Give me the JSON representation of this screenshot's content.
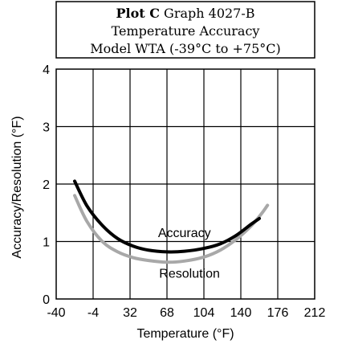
{
  "title": {
    "bold": "Plot C",
    "rest": " Graph 4027-B",
    "line2": "Temperature Accuracy",
    "line3": "Model WTA (-39°C to +75°C)"
  },
  "chart_data": {
    "type": "line",
    "xlabel": "Temperature (°F)",
    "ylabel": "Accuracy/Resolution (°F)",
    "xlim": [
      -40,
      212
    ],
    "ylim": [
      0,
      4
    ],
    "x_ticks": [
      -40,
      -4,
      32,
      68,
      104,
      140,
      176,
      212
    ],
    "y_ticks": [
      0,
      1,
      2,
      3,
      4
    ],
    "grid": true,
    "series": [
      {
        "name": "Accuracy",
        "color": "#000000",
        "x": [
          -22,
          -10,
          5,
          20,
          35,
          50,
          68,
          85,
          104,
          120,
          135,
          150,
          158
        ],
        "y": [
          2.05,
          1.62,
          1.28,
          1.05,
          0.92,
          0.85,
          0.82,
          0.83,
          0.88,
          0.96,
          1.1,
          1.3,
          1.4
        ]
      },
      {
        "name": "Resolution",
        "color": "#a8a8a8",
        "x": [
          -22,
          -10,
          5,
          20,
          35,
          50,
          68,
          85,
          104,
          120,
          135,
          150,
          160,
          166
        ],
        "y": [
          1.8,
          1.35,
          1.0,
          0.82,
          0.72,
          0.67,
          0.64,
          0.66,
          0.73,
          0.85,
          1.03,
          1.27,
          1.48,
          1.63
        ]
      }
    ],
    "annotations": [
      "Accuracy",
      "Resolution"
    ]
  }
}
